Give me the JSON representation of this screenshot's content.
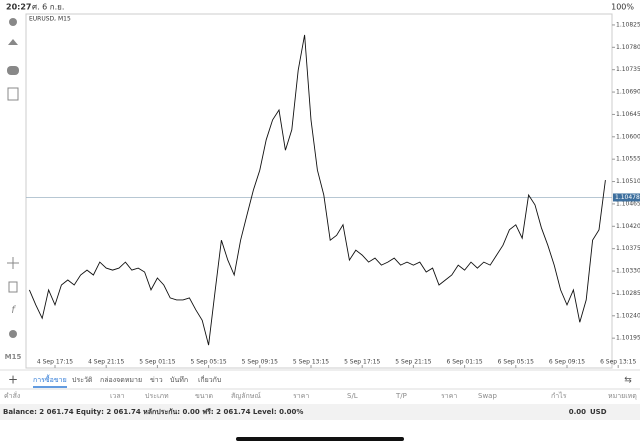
{
  "status_bar": {
    "time": "20:27",
    "date": "ศ. 6 ก.ย.",
    "battery": "100%"
  },
  "toolbar": {
    "timeframe": "M15"
  },
  "chart_data": {
    "type": "line",
    "title": "EURUSD, M15",
    "color": "#111111",
    "categories": [
      null,
      null,
      null,
      null,
      "4 Sep 17:15",
      null,
      null,
      null,
      null,
      null,
      null,
      null,
      "4 Sep 21:15",
      null,
      null,
      null,
      null,
      null,
      null,
      null,
      "5 Sep 01:15",
      null,
      null,
      null,
      null,
      null,
      null,
      null,
      "5 Sep 05:15",
      null,
      null,
      null,
      null,
      null,
      null,
      null,
      "5 Sep 09:15",
      null,
      null,
      null,
      null,
      null,
      null,
      null,
      "5 Sep 13:15",
      null,
      null,
      null,
      null,
      null,
      null,
      null,
      "5 Sep 17:15",
      null,
      null,
      null,
      null,
      null,
      null,
      null,
      "5 Sep 21:15",
      null,
      null,
      null,
      null,
      null,
      null,
      null,
      "6 Sep 01:15",
      null,
      null,
      null,
      null,
      null,
      null,
      null,
      "6 Sep 05:15",
      null,
      null,
      null,
      null,
      null,
      null,
      null,
      "6 Sep 09:15",
      null,
      null,
      null,
      null,
      null,
      null,
      null,
      "6 Sep 13:15"
    ],
    "values": [
      1.10292,
      1.10262,
      1.10235,
      1.10292,
      1.10262,
      1.10302,
      1.10312,
      1.10302,
      1.10322,
      1.10332,
      1.10322,
      1.10348,
      1.10336,
      1.10332,
      1.10336,
      1.10348,
      1.10332,
      1.10336,
      1.10328,
      1.10292,
      1.10316,
      1.10302,
      1.10276,
      1.10272,
      1.10272,
      1.10276,
      1.10252,
      1.10231,
      1.10181,
      1.10288,
      1.10392,
      1.10352,
      1.10322,
      1.10392,
      1.10443,
      1.10493,
      1.10533,
      1.10594,
      1.10634,
      1.10654,
      1.10573,
      1.10614,
      1.10734,
      1.10805,
      1.10634,
      1.10533,
      1.10483,
      1.10392,
      1.10402,
      1.10423,
      1.10352,
      1.10372,
      1.10362,
      1.10348,
      1.10356,
      1.10342,
      1.10348,
      1.10356,
      1.10342,
      1.10348,
      1.10342,
      1.10348,
      1.10328,
      1.10336,
      1.10302,
      1.10312,
      1.10322,
      1.10342,
      1.10332,
      1.10348,
      1.10336,
      1.10348,
      1.10342,
      1.10362,
      1.10382,
      1.10413,
      1.10423,
      1.10396,
      1.10483,
      1.10463,
      1.10417,
      1.10382,
      1.10342,
      1.10292,
      1.10262,
      1.10292,
      1.10227,
      1.10272,
      1.10392,
      1.10413,
      1.10513,
      null,
      null
    ],
    "ylim": [
      1.10135,
      1.10847
    ],
    "yticks": [
      1.10825,
      {
        "value": 1.1078,
        "label": "1.10780"
      },
      1.10735,
      {
        "value": 1.1069,
        "label": "1.10690"
      },
      1.10645,
      {
        "value": 1.106,
        "label": "1.10600"
      },
      1.10555,
      {
        "value": 1.1051,
        "label": "1.10510"
      },
      1.10465,
      {
        "value": 1.1042,
        "label": "1.10420"
      },
      1.10375,
      {
        "value": 1.1033,
        "label": "1.10330"
      },
      1.10285,
      {
        "value": 1.1024,
        "label": "1.10240"
      },
      1.10195
    ],
    "current_price": 1.10478
  },
  "tabs": [
    "การซื้อขาย",
    "ประวัติ",
    "กล่องจดหมาย",
    "ข่าว",
    "บันทึก",
    "เกี่ยวกับ"
  ],
  "columns": [
    "คำสั่ง",
    "เวลา",
    "ประเภท",
    "ขนาด",
    "สัญลักษณ์",
    "ราคา",
    "S/L",
    "T/P",
    "ราคา",
    "Swap",
    "กำไร",
    "หมายเหตุ"
  ],
  "balance": {
    "summary": "Balance: 2 061.74 Equity: 2 061.74 หลักประกัน: 0.00 ฟรี: 2 061.74 Level: 0.00%",
    "profit": "0.00",
    "currency": "USD"
  }
}
